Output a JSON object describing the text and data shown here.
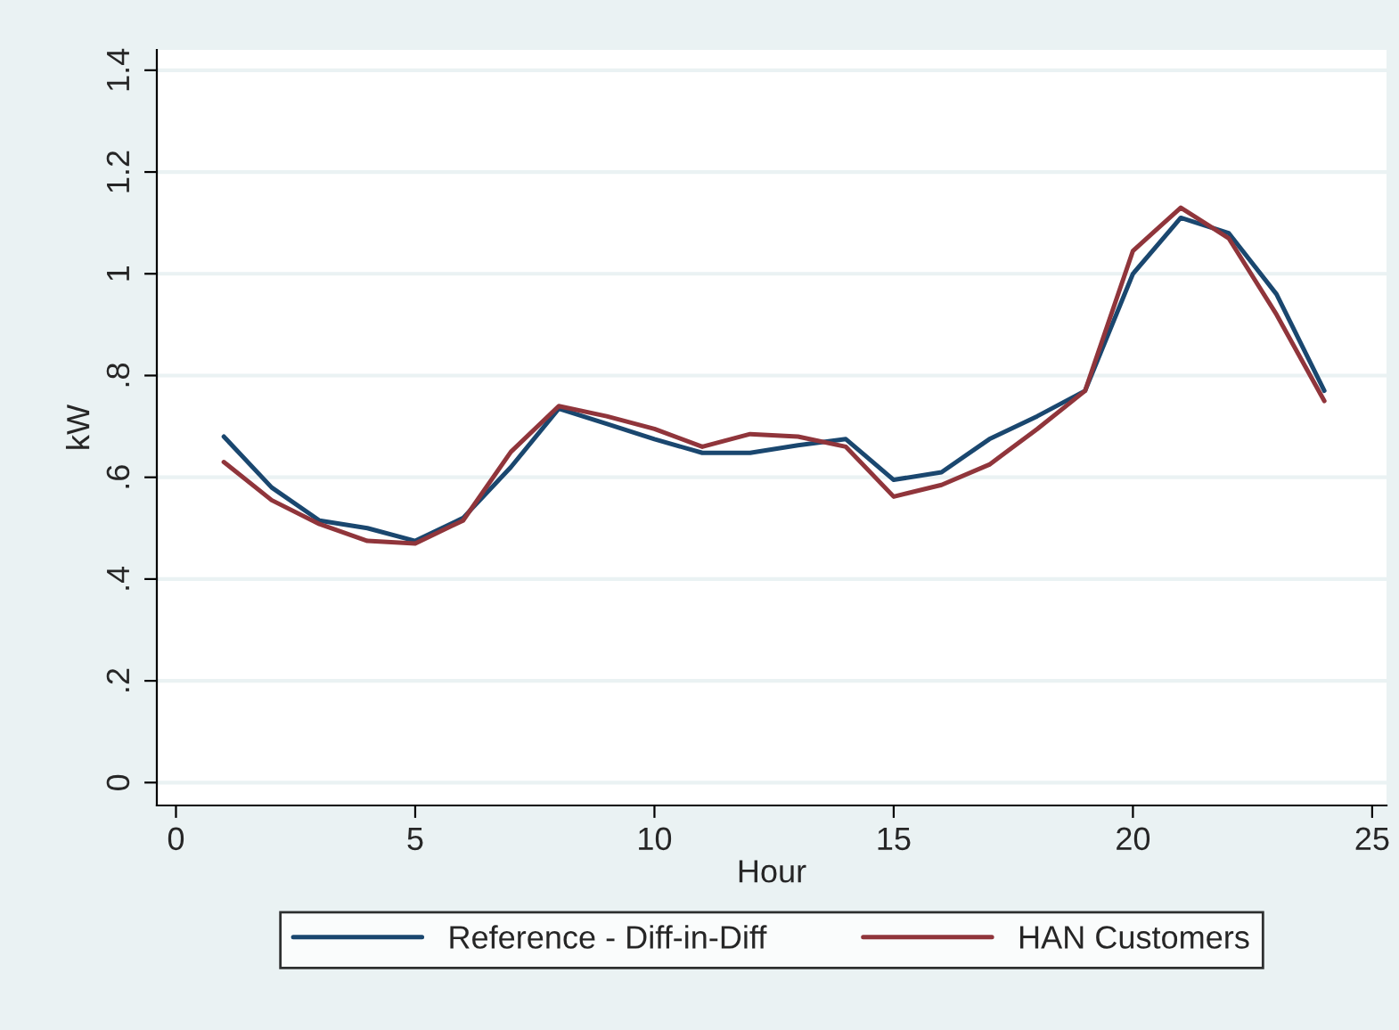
{
  "chart_data": {
    "type": "line",
    "xlabel": "Hour",
    "ylabel": "kW",
    "x": [
      1,
      2,
      3,
      4,
      5,
      6,
      7,
      8,
      9,
      10,
      11,
      12,
      13,
      14,
      15,
      16,
      17,
      18,
      19,
      20,
      21,
      22,
      23,
      24
    ],
    "series": [
      {
        "name": "Reference - Diff-in-Diff",
        "color": "#1a476f",
        "values": [
          0.68,
          0.58,
          0.515,
          0.5,
          0.475,
          0.52,
          0.62,
          0.735,
          0.705,
          0.675,
          0.648,
          0.648,
          0.663,
          0.675,
          0.595,
          0.61,
          0.675,
          0.72,
          0.77,
          1.0,
          1.11,
          1.08,
          0.96,
          0.77
        ]
      },
      {
        "name": "HAN Customers",
        "color": "#90353b",
        "values": [
          0.63,
          0.555,
          0.508,
          0.475,
          0.47,
          0.515,
          0.65,
          0.74,
          0.72,
          0.695,
          0.66,
          0.685,
          0.68,
          0.66,
          0.562,
          0.585,
          0.625,
          0.695,
          0.77,
          1.045,
          1.13,
          1.07,
          0.92,
          0.75
        ]
      }
    ],
    "xlim": [
      -0.4,
      25.3
    ],
    "ylim": [
      -0.045,
      1.44
    ],
    "xticks": [
      0,
      5,
      10,
      15,
      20,
      25
    ],
    "yticks": [
      {
        "value": 0,
        "label": "0"
      },
      {
        "value": 0.2,
        "label": ".2"
      },
      {
        "value": 0.4,
        "label": ".4"
      },
      {
        "value": 0.6,
        "label": ".6"
      },
      {
        "value": 0.8,
        "label": ".8"
      },
      {
        "value": 1,
        "label": "1"
      },
      {
        "value": 1.2,
        "label": "1.2"
      },
      {
        "value": 1.4,
        "label": "1.4"
      }
    ],
    "grid": "y",
    "legend": "bottom",
    "marker": "none",
    "line_style": "solid"
  }
}
